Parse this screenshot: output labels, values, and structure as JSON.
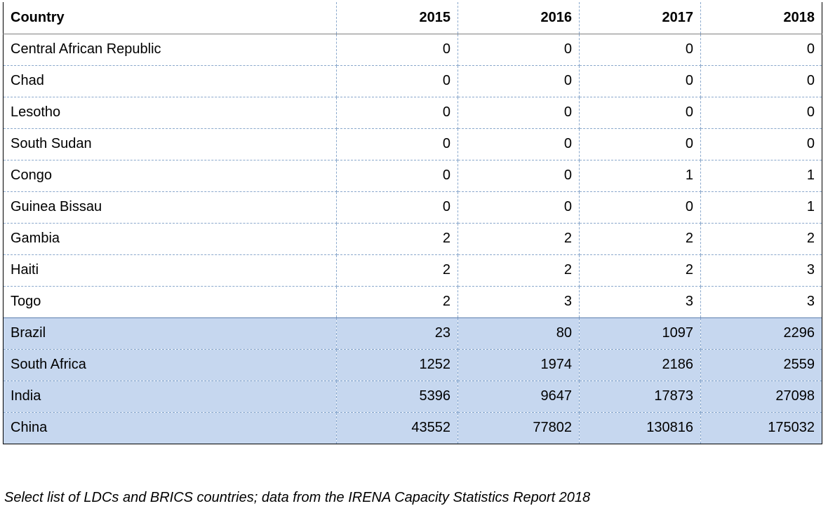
{
  "table": {
    "headers": [
      "Country",
      "2015",
      "2016",
      "2017",
      "2018"
    ],
    "rows": [
      {
        "country": "Central African Republic",
        "values": [
          "0",
          "0",
          "0",
          "0"
        ],
        "group": "ldc"
      },
      {
        "country": "Chad",
        "values": [
          "0",
          "0",
          "0",
          "0"
        ],
        "group": "ldc"
      },
      {
        "country": "Lesotho",
        "values": [
          "0",
          "0",
          "0",
          "0"
        ],
        "group": "ldc"
      },
      {
        "country": "South Sudan",
        "values": [
          "0",
          "0",
          "0",
          "0"
        ],
        "group": "ldc"
      },
      {
        "country": "Congo",
        "values": [
          "0",
          "0",
          "1",
          "1"
        ],
        "group": "ldc"
      },
      {
        "country": "Guinea Bissau",
        "values": [
          "0",
          "0",
          "0",
          "1"
        ],
        "group": "ldc"
      },
      {
        "country": "Gambia",
        "values": [
          "2",
          "2",
          "2",
          "2"
        ],
        "group": "ldc"
      },
      {
        "country": "Haiti",
        "values": [
          "2",
          "2",
          "2",
          "3"
        ],
        "group": "ldc"
      },
      {
        "country": "Togo",
        "values": [
          "2",
          "3",
          "3",
          "3"
        ],
        "group": "ldc"
      },
      {
        "country": "Brazil",
        "values": [
          "23",
          "80",
          "1097",
          "2296"
        ],
        "group": "brics"
      },
      {
        "country": "South Africa",
        "values": [
          "1252",
          "1974",
          "2186",
          "2559"
        ],
        "group": "brics"
      },
      {
        "country": "India",
        "values": [
          "5396",
          "9647",
          "17873",
          "27098"
        ],
        "group": "brics"
      },
      {
        "country": "China",
        "values": [
          "43552",
          "77802",
          "130816",
          "175032"
        ],
        "group": "brics"
      }
    ]
  },
  "caption": "Select list of LDCs and BRICS countries; data from the IRENA Capacity Statistics Report 2018",
  "colors": {
    "brics_highlight": "#c6d7ef",
    "grid_dashed": "#8aa8cc",
    "outer_border": "#000000"
  }
}
